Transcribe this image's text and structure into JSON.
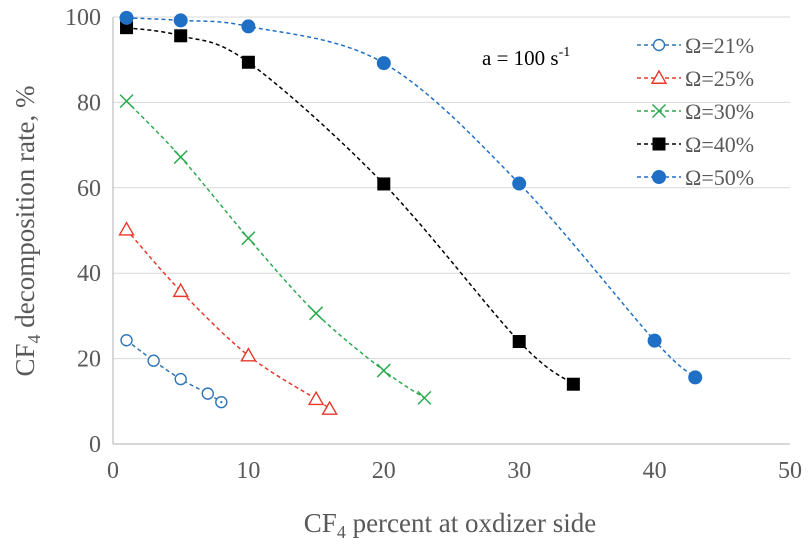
{
  "chart_data": {
    "type": "scatter",
    "title": "",
    "xlabel": {
      "main": "CF",
      "sub": "4",
      "rest": " percent at oxdizer side"
    },
    "ylabel": {
      "main": "CF",
      "sub": "4",
      "rest": " decomposition rate, %"
    },
    "xlim": [
      0,
      50
    ],
    "ylim": [
      0,
      100
    ],
    "xticks": [
      0,
      10,
      20,
      30,
      40,
      50
    ],
    "yticks": [
      0,
      20,
      40,
      60,
      80,
      100
    ],
    "grid": "horizontal",
    "legend_position": "top-right",
    "annotation": {
      "main": "a = 100 s",
      "sup": "-1"
    },
    "series": [
      {
        "name": "Ω=21%",
        "marker": "circle-open",
        "color": "#2E75B6",
        "x": [
          1,
          3,
          5,
          7,
          8
        ],
        "y": [
          24.3,
          19.5,
          15.2,
          11.8,
          9.8
        ]
      },
      {
        "name": "Ω=25%",
        "marker": "triangle-open",
        "color": "#E8392A",
        "x": [
          1,
          5,
          10,
          15,
          16
        ],
        "y": [
          50.2,
          35.8,
          20.7,
          10.5,
          8.2
        ]
      },
      {
        "name": "Ω=30%",
        "marker": "x",
        "color": "#2DAA4F",
        "x": [
          1,
          5,
          10,
          15,
          20,
          23
        ],
        "y": [
          80.3,
          67.2,
          48.2,
          30.6,
          17.2,
          10.8
        ]
      },
      {
        "name": "Ω=40%",
        "marker": "square-filled",
        "color": "#000000",
        "x": [
          1,
          5,
          10,
          20,
          30,
          34
        ],
        "y": [
          97.5,
          95.6,
          89.4,
          60.9,
          24.0,
          14.0
        ]
      },
      {
        "name": "Ω=50%",
        "marker": "circle-filled",
        "color": "#1F6FC5",
        "x": [
          1,
          5,
          10,
          20,
          30,
          40,
          43
        ],
        "y": [
          99.8,
          99.2,
          97.8,
          89.2,
          61.0,
          24.2,
          15.6
        ]
      }
    ]
  }
}
